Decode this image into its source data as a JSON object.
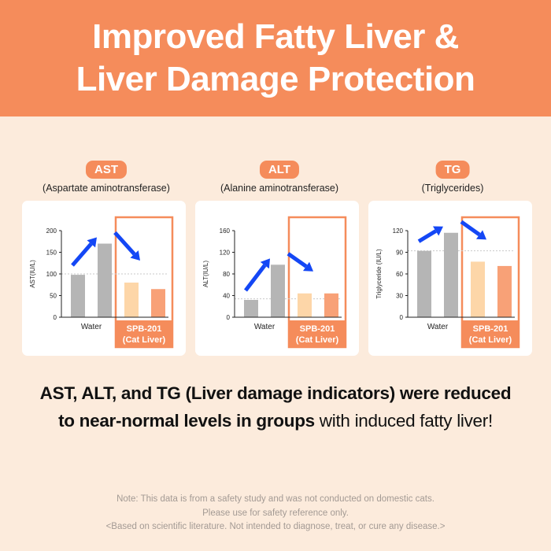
{
  "header": {
    "title_line1": "Improved Fatty Liver &",
    "title_line2": "Liver Damage Protection"
  },
  "colors": {
    "accent": "#f58c5b",
    "water_bar": "#b5b5b5",
    "treatment_bar_1": "#fdd6a8",
    "treatment_bar_2": "#f8a177",
    "arrow": "#1447f5"
  },
  "icons": [
    "arrow-up-icon",
    "arrow-down-icon"
  ],
  "chart_data": [
    {
      "type": "bar",
      "badge": "AST",
      "subtitle": "(Aspartate aminotransferase)",
      "ylabel": "AST(IU/L)",
      "ylim": [
        0,
        200
      ],
      "yticks": [
        0,
        50,
        100,
        150,
        200
      ],
      "reference_line": 100,
      "values": [
        98,
        170,
        80,
        65
      ],
      "group_labels": {
        "water": "Water",
        "treatment_line1": "SPB-201",
        "treatment_line2": "(Cat Liver)"
      },
      "arrows": [
        "up",
        "down"
      ]
    },
    {
      "type": "bar",
      "badge": "ALT",
      "subtitle": "(Alanine aminotransferase)",
      "ylabel": "ALT(IU/L)",
      "ylim": [
        0,
        160
      ],
      "yticks": [
        0,
        40,
        80,
        120,
        160
      ],
      "reference_line": 34,
      "values": [
        32,
        97,
        44,
        44
      ],
      "group_labels": {
        "water": "Water",
        "treatment_line1": "SPB-201",
        "treatment_line2": "(Cat Liver)"
      },
      "arrows": [
        "up",
        "down"
      ]
    },
    {
      "type": "bar",
      "badge": "TG",
      "subtitle": "(Triglycerides)",
      "ylabel": "Triglyceride (IU/L)",
      "ylim": [
        0,
        120
      ],
      "yticks": [
        0,
        30,
        60,
        90,
        120
      ],
      "reference_line": 92,
      "values": [
        92,
        117,
        77,
        71
      ],
      "group_labels": {
        "water": "Water",
        "treatment_line1": "SPB-201",
        "treatment_line2": "(Cat Liver)"
      },
      "arrows": [
        "up",
        "down"
      ]
    }
  ],
  "main_text": {
    "bold_line1": "AST, ALT, and TG (Liver damage indicators) were reduced",
    "bold_line2": "to near-normal levels in groups",
    "regular_line2": " with induced fatty liver!"
  },
  "note": {
    "line1": "Note: This data is from a safety study and was not conducted on domestic cats.",
    "line2": "Please use for safety reference only.",
    "line3": "<Based on scientific literature. Not intended to diagnose, treat, or cure any disease.>"
  }
}
